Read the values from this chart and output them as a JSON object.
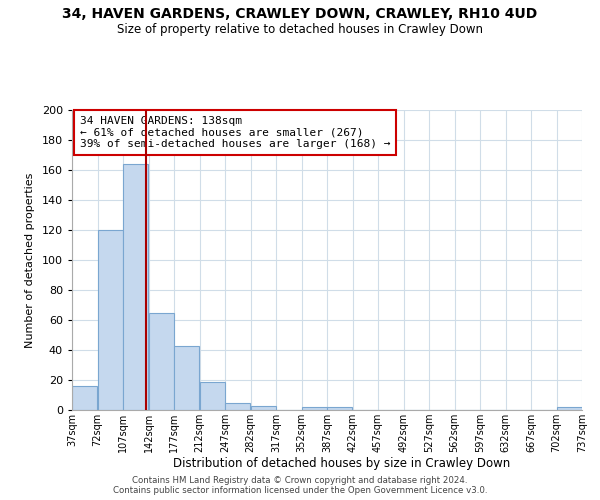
{
  "title": "34, HAVEN GARDENS, CRAWLEY DOWN, CRAWLEY, RH10 4UD",
  "subtitle": "Size of property relative to detached houses in Crawley Down",
  "xlabel": "Distribution of detached houses by size in Crawley Down",
  "ylabel": "Number of detached properties",
  "bar_edges": [
    37,
    72,
    107,
    142,
    177,
    212,
    247,
    282,
    317,
    352,
    387,
    422,
    457,
    492,
    527,
    562,
    597,
    632,
    667,
    702,
    737
  ],
  "bar_heights": [
    16,
    120,
    164,
    65,
    43,
    19,
    5,
    3,
    0,
    2,
    2,
    0,
    0,
    0,
    0,
    0,
    0,
    0,
    0,
    2
  ],
  "bar_color": "#c5d8ee",
  "bar_edgecolor": "#7aa6d0",
  "vline_x": 138,
  "vline_color": "#aa0000",
  "annotation_line1": "34 HAVEN GARDENS: 138sqm",
  "annotation_line2": "← 61% of detached houses are smaller (267)",
  "annotation_line3": "39% of semi-detached houses are larger (168) →",
  "ylim": [
    0,
    200
  ],
  "yticks": [
    0,
    20,
    40,
    60,
    80,
    100,
    120,
    140,
    160,
    180,
    200
  ],
  "tick_labels": [
    "37sqm",
    "72sqm",
    "107sqm",
    "142sqm",
    "177sqm",
    "212sqm",
    "247sqm",
    "282sqm",
    "317sqm",
    "352sqm",
    "387sqm",
    "422sqm",
    "457sqm",
    "492sqm",
    "527sqm",
    "562sqm",
    "597sqm",
    "632sqm",
    "667sqm",
    "702sqm",
    "737sqm"
  ],
  "footer_line1": "Contains HM Land Registry data © Crown copyright and database right 2024.",
  "footer_line2": "Contains public sector information licensed under the Open Government Licence v3.0.",
  "grid_color": "#d0dde8",
  "background_color": "#ffffff"
}
